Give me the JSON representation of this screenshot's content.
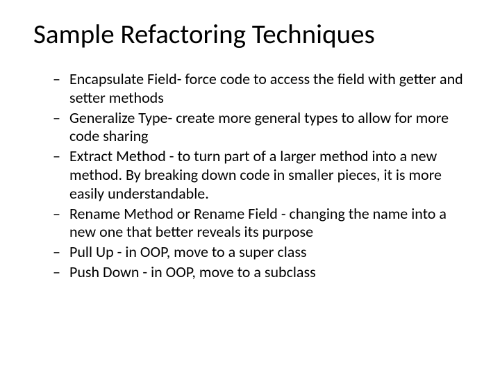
{
  "slide": {
    "title": "Sample Refactoring Techniques",
    "title_fontsize": 39,
    "title_color": "#000000",
    "background_color": "#ffffff",
    "body_fontsize": 22,
    "body_color": "#000000",
    "bullet_glyph": "–",
    "bullets": [
      "Encapsulate Field- force code to access the field with getter and setter methods",
      "Generalize Type- create more general types to allow for more code sharing",
      "Extract Method  - to turn part of a larger method into a new method. By breaking down code in smaller pieces, it is more easily understandable.",
      "Rename Method or Rename Field - changing the name into a new one that better reveals its purpose",
      "Pull Up - in OOP, move to a super class",
      "Push Down - in OOP, move to a subclass"
    ]
  }
}
